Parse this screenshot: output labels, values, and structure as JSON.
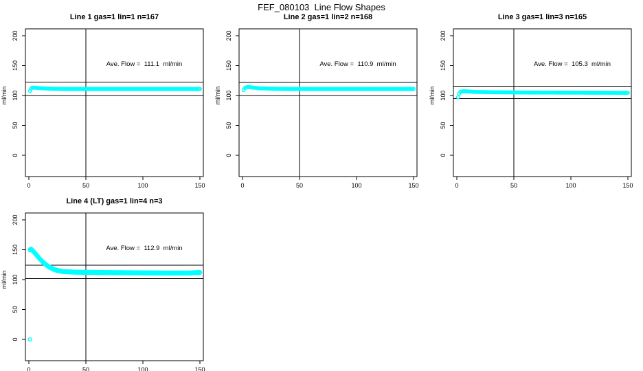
{
  "figure_title": "FEF_080103  Line Flow Shapes",
  "colors": {
    "data_marker": "#00FFFF",
    "axis": "#000000",
    "background": "#FFFFFF"
  },
  "chart_data": [
    {
      "type": "scatter",
      "title": "Line 1 gas=1 lin=1 n=167",
      "annotation": "Ave. Flow =  111.1  ml/min",
      "ave_flow_ml_min": 111.1,
      "ylabel": "ml/min",
      "x_ticks": [
        0,
        50,
        100,
        150
      ],
      "y_ticks": [
        0,
        50,
        100,
        150,
        200
      ],
      "xlim": [
        0,
        155
      ],
      "ref_vline_x": 50,
      "ref_hlines": [
        122.2,
        100.0
      ],
      "n_series": 1,
      "x_start": 1,
      "x_end": 150,
      "curve_breakpoints": [
        [
          1,
          107.5
        ],
        [
          2,
          111.5
        ],
        [
          3,
          113
        ],
        [
          5,
          113
        ],
        [
          8,
          112.5
        ],
        [
          12,
          112
        ],
        [
          18,
          111.5
        ],
        [
          30,
          111
        ],
        [
          150,
          111
        ]
      ],
      "outliers": []
    },
    {
      "type": "scatter",
      "title": "Line 2 gas=1 lin=2 n=168",
      "annotation": "Ave. Flow =  110.9  ml/min",
      "ave_flow_ml_min": 110.9,
      "ylabel": "ml/min",
      "x_ticks": [
        0,
        50,
        100,
        150
      ],
      "y_ticks": [
        0,
        50,
        100,
        150,
        200
      ],
      "xlim": [
        0,
        155
      ],
      "ref_vline_x": 50,
      "ref_hlines": [
        122.0,
        99.8
      ],
      "n_series": 1,
      "x_start": 1,
      "x_end": 150,
      "curve_breakpoints": [
        [
          1,
          109
        ],
        [
          2,
          112.5
        ],
        [
          4,
          114
        ],
        [
          6,
          114
        ],
        [
          10,
          113
        ],
        [
          15,
          112
        ],
        [
          25,
          111.5
        ],
        [
          40,
          111
        ],
        [
          150,
          111
        ]
      ],
      "outliers": []
    },
    {
      "type": "scatter",
      "title": "Line 3 gas=1 lin=3 n=165",
      "annotation": "Ave. Flow =  105.3  ml/min",
      "ave_flow_ml_min": 105.3,
      "ylabel": "ml/min",
      "x_ticks": [
        0,
        50,
        100,
        150
      ],
      "y_ticks": [
        0,
        50,
        100,
        150,
        200
      ],
      "xlim": [
        0,
        155
      ],
      "ref_vline_x": 50,
      "ref_hlines": [
        115.8,
        94.8
      ],
      "n_series": 1,
      "x_start": 1,
      "x_end": 150,
      "curve_breakpoints": [
        [
          1,
          97
        ],
        [
          2,
          103
        ],
        [
          3,
          106
        ],
        [
          5,
          107
        ],
        [
          8,
          107
        ],
        [
          15,
          106
        ],
        [
          30,
          105.5
        ],
        [
          60,
          105
        ],
        [
          150,
          104.5
        ]
      ],
      "outliers": []
    },
    {
      "type": "scatter",
      "title": "Line 4 (LT) gas=1 lin=4 n=3",
      "annotation": "Ave. Flow =  112.9  ml/min",
      "ave_flow_ml_min": 112.9,
      "ylabel": "ml/min",
      "x_ticks": [
        0,
        50,
        100,
        150
      ],
      "y_ticks": [
        0,
        50,
        100,
        150,
        200
      ],
      "xlim": [
        0,
        155
      ],
      "ref_vline_x": 50,
      "ref_hlines": [
        124.2,
        101.6
      ],
      "n_series": 3,
      "x_start": 1,
      "x_end": 150,
      "curve_breakpoints": [
        [
          1,
          150
        ],
        [
          2,
          151
        ],
        [
          4,
          147
        ],
        [
          6,
          143
        ],
        [
          9,
          136
        ],
        [
          12,
          130
        ],
        [
          15,
          125
        ],
        [
          18,
          121
        ],
        [
          22,
          117
        ],
        [
          26,
          115
        ],
        [
          30,
          113.5
        ],
        [
          40,
          112.5
        ],
        [
          60,
          112
        ],
        [
          90,
          111.5
        ],
        [
          120,
          111
        ],
        [
          140,
          111
        ],
        [
          150,
          112
        ]
      ],
      "outliers": [
        [
          1,
          0
        ]
      ]
    }
  ]
}
